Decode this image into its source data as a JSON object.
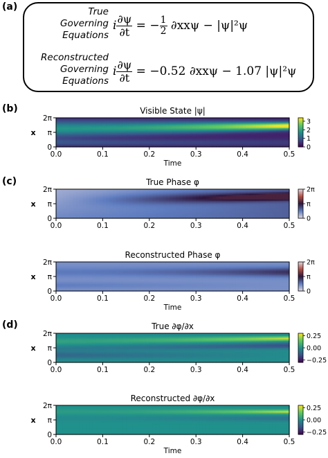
{
  "panel_labels": {
    "a": "(a)",
    "b": "(b)",
    "c": "(c)",
    "d": "(d)"
  },
  "equations": {
    "true_label": [
      "True",
      "Governing",
      "Equations"
    ],
    "recon_label": [
      "Reconstructed",
      "Governing",
      "Equations"
    ],
    "true_lhs_num": "∂ψ",
    "true_lhs_den": "∂t",
    "true_rhs_1": "= −",
    "true_half_num": "1",
    "true_half_den": "2",
    "true_rhs_2": "∂xxψ − |ψ|²ψ",
    "recon_rhs": "= −0.52 ∂xxψ − 1.07 |ψ|²ψ"
  },
  "chart_data": [
    {
      "type": "heatmap",
      "title": "Visible State |ψ|",
      "xlabel": "Time",
      "ylabel": "x",
      "xlim": [
        0.0,
        0.5
      ],
      "xticks": [
        "0.0",
        "0.1",
        "0.2",
        "0.3",
        "0.4",
        "0.5"
      ],
      "yticks": [
        "0",
        "π",
        "2π"
      ],
      "colormap": "viridis",
      "colorbar": {
        "ticks": [
          "0",
          "1",
          "2",
          "3"
        ],
        "range": [
          0,
          3.4
        ]
      }
    },
    {
      "type": "heatmap",
      "title": "True Phase φ",
      "xlabel": "",
      "ylabel": "x",
      "xlim": [
        0.0,
        0.5
      ],
      "xticks": [
        "0.0",
        "0.1",
        "0.2",
        "0.3",
        "0.4",
        "0.5"
      ],
      "yticks": [
        "0",
        "π",
        "2π"
      ],
      "colormap": "twilight",
      "colorbar": {
        "ticks": [
          "0",
          "π",
          "2π"
        ],
        "range": [
          0,
          6.283
        ]
      }
    },
    {
      "type": "heatmap",
      "title": "Reconstructed Phase φ",
      "xlabel": "Time",
      "ylabel": "x",
      "xlim": [
        0.0,
        0.5
      ],
      "xticks": [
        "0.0",
        "0.1",
        "0.2",
        "0.3",
        "0.4",
        "0.5"
      ],
      "yticks": [
        "0",
        "π",
        "2π"
      ],
      "colormap": "twilight",
      "colorbar": {
        "ticks": [
          "0",
          "π",
          "2π"
        ],
        "range": [
          0,
          6.283
        ]
      }
    },
    {
      "type": "heatmap",
      "title": "True ∂φ/∂x",
      "xlabel": "",
      "ylabel": "x",
      "xlim": [
        0.0,
        0.5
      ],
      "xticks": [
        "0.0",
        "0.1",
        "0.2",
        "0.3",
        "0.4",
        "0.5"
      ],
      "yticks": [
        "0",
        "π",
        "2π"
      ],
      "colormap": "viridis",
      "colorbar": {
        "ticks": [
          "0.25",
          "0.00",
          "−0.25"
        ],
        "range": [
          -0.3,
          0.3
        ]
      }
    },
    {
      "type": "heatmap",
      "title": "Reconstructed ∂φ/∂x",
      "xlabel": "Time",
      "ylabel": "x",
      "xlim": [
        0.0,
        0.5
      ],
      "xticks": [
        "0.0",
        "0.1",
        "0.2",
        "0.3",
        "0.4",
        "0.5"
      ],
      "yticks": [
        "0",
        "π",
        "2π"
      ],
      "colormap": "viridis",
      "colorbar": {
        "ticks": [
          "0.25",
          "0.00",
          "−0.25"
        ],
        "range": [
          -0.3,
          0.3
        ]
      }
    }
  ]
}
